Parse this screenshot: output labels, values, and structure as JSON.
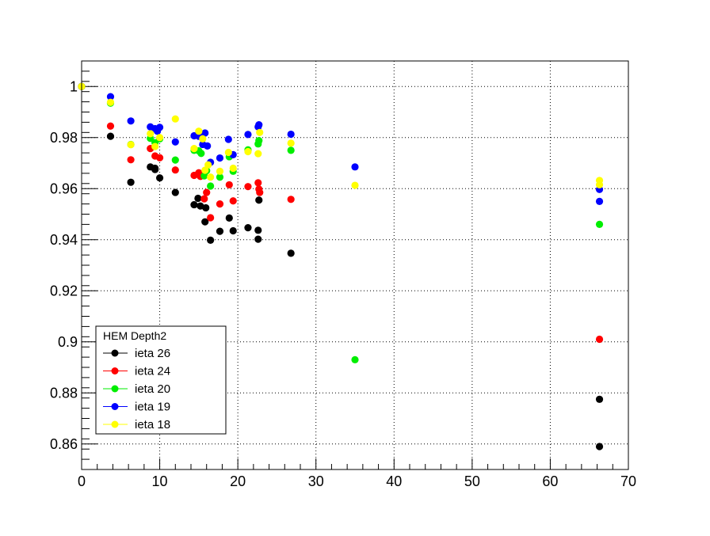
{
  "chart_data": {
    "type": "scatter",
    "title": "",
    "xlabel": "",
    "ylabel": "",
    "xlim": [
      0,
      70
    ],
    "ylim": [
      0.85,
      1.01
    ],
    "grid": true,
    "x_ticks": [
      "0",
      "10",
      "20",
      "30",
      "40",
      "50",
      "60",
      "70"
    ],
    "y_ticks": [
      "0.86",
      "0.88",
      "0.9",
      "0.92",
      "0.94",
      "0.96",
      "0.98",
      "1"
    ],
    "legend": {
      "title": "HEM Depth2",
      "position": "bottom-left"
    },
    "series": [
      {
        "name": "ieta 26",
        "color": "#000000",
        "points": [
          [
            0,
            1.0
          ],
          [
            3.7,
            0.9805
          ],
          [
            6.3,
            0.9625
          ],
          [
            8.8,
            0.9685
          ],
          [
            9.4,
            0.9675
          ],
          [
            9.4,
            0.968
          ],
          [
            10.0,
            0.9642
          ],
          [
            12.0,
            0.9585
          ],
          [
            14.4,
            0.9537
          ],
          [
            14.9,
            0.9562
          ],
          [
            15.2,
            0.9532
          ],
          [
            15.8,
            0.947
          ],
          [
            15.9,
            0.9525
          ],
          [
            16.5,
            0.9398
          ],
          [
            17.7,
            0.9433
          ],
          [
            18.9,
            0.9485
          ],
          [
            19.4,
            0.9435
          ],
          [
            21.3,
            0.9447
          ],
          [
            22.6,
            0.9402
          ],
          [
            22.6,
            0.9437
          ],
          [
            22.7,
            0.9555
          ],
          [
            26.8,
            0.9347
          ],
          [
            66.3,
            0.8775
          ],
          [
            66.3,
            0.859
          ]
        ]
      },
      {
        "name": "ieta 24",
        "color": "#ff0000",
        "points": [
          [
            0,
            1.0
          ],
          [
            3.7,
            0.9845
          ],
          [
            6.3,
            0.9713
          ],
          [
            8.8,
            0.9757
          ],
          [
            9.4,
            0.9728
          ],
          [
            10.0,
            0.9721
          ],
          [
            12.0,
            0.9673
          ],
          [
            14.4,
            0.9652
          ],
          [
            15.0,
            0.9662
          ],
          [
            15.2,
            0.9648
          ],
          [
            15.7,
            0.956
          ],
          [
            16.0,
            0.9585
          ],
          [
            16.5,
            0.9486
          ],
          [
            17.7,
            0.954
          ],
          [
            18.9,
            0.9615
          ],
          [
            19.4,
            0.9552
          ],
          [
            21.3,
            0.9608
          ],
          [
            22.6,
            0.9623
          ],
          [
            22.7,
            0.9598
          ],
          [
            22.8,
            0.9585
          ],
          [
            26.8,
            0.9558
          ],
          [
            66.3,
            0.901
          ]
        ]
      },
      {
        "name": "ieta 20",
        "color": "#00ee00",
        "points": [
          [
            0,
            1.0
          ],
          [
            3.7,
            0.9935
          ],
          [
            6.3,
            0.9773
          ],
          [
            8.8,
            0.9797
          ],
          [
            9.4,
            0.978
          ],
          [
            10.0,
            0.9795
          ],
          [
            12.0,
            0.9712
          ],
          [
            14.4,
            0.975
          ],
          [
            15.0,
            0.9748
          ],
          [
            15.3,
            0.9738
          ],
          [
            15.7,
            0.965
          ],
          [
            16.0,
            0.967
          ],
          [
            16.5,
            0.961
          ],
          [
            17.7,
            0.9645
          ],
          [
            18.9,
            0.9725
          ],
          [
            19.4,
            0.9668
          ],
          [
            21.3,
            0.9752
          ],
          [
            22.6,
            0.9775
          ],
          [
            22.7,
            0.9788
          ],
          [
            26.8,
            0.975
          ],
          [
            35.0,
            0.893
          ],
          [
            66.3,
            0.946
          ]
        ]
      },
      {
        "name": "ieta 19",
        "color": "#0000ff",
        "points": [
          [
            0,
            1.0
          ],
          [
            3.7,
            0.996
          ],
          [
            6.3,
            0.9865
          ],
          [
            8.8,
            0.9842
          ],
          [
            9.4,
            0.9835
          ],
          [
            9.7,
            0.9825
          ],
          [
            10.0,
            0.984
          ],
          [
            12.0,
            0.9783
          ],
          [
            14.4,
            0.9807
          ],
          [
            15.0,
            0.9805
          ],
          [
            15.5,
            0.9773
          ],
          [
            15.8,
            0.9818
          ],
          [
            16.1,
            0.9767
          ],
          [
            16.5,
            0.9703
          ],
          [
            17.7,
            0.972
          ],
          [
            18.8,
            0.9793
          ],
          [
            19.4,
            0.9733
          ],
          [
            21.3,
            0.9812
          ],
          [
            22.6,
            0.9842
          ],
          [
            22.7,
            0.985
          ],
          [
            26.8,
            0.9813
          ],
          [
            35.0,
            0.9685
          ],
          [
            66.3,
            0.9597
          ],
          [
            66.3,
            0.955
          ]
        ]
      },
      {
        "name": "ieta 18",
        "color": "#ffff00",
        "points": [
          [
            0,
            1.0
          ],
          [
            3.7,
            0.9938
          ],
          [
            6.3,
            0.9772
          ],
          [
            8.8,
            0.9815
          ],
          [
            9.4,
            0.9765
          ],
          [
            10.0,
            0.98
          ],
          [
            12.0,
            0.9873
          ],
          [
            14.4,
            0.9757
          ],
          [
            15.0,
            0.9825
          ],
          [
            15.5,
            0.9795
          ],
          [
            15.8,
            0.9672
          ],
          [
            16.2,
            0.9693
          ],
          [
            16.5,
            0.9645
          ],
          [
            17.7,
            0.9668
          ],
          [
            18.8,
            0.9742
          ],
          [
            19.4,
            0.968
          ],
          [
            21.3,
            0.9745
          ],
          [
            22.6,
            0.9737
          ],
          [
            22.8,
            0.982
          ],
          [
            26.8,
            0.9778
          ],
          [
            35.0,
            0.9613
          ],
          [
            66.3,
            0.9632
          ],
          [
            66.3,
            0.9615
          ]
        ]
      }
    ]
  }
}
